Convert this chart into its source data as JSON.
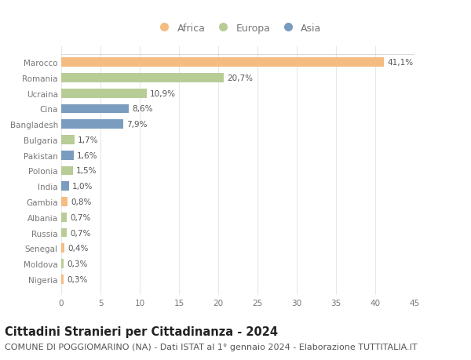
{
  "countries": [
    "Marocco",
    "Romania",
    "Ucraina",
    "Cina",
    "Bangladesh",
    "Bulgaria",
    "Pakistan",
    "Polonia",
    "India",
    "Gambia",
    "Albania",
    "Russia",
    "Senegal",
    "Moldova",
    "Nigeria"
  ],
  "values": [
    41.1,
    20.7,
    10.9,
    8.6,
    7.9,
    1.7,
    1.6,
    1.5,
    1.0,
    0.8,
    0.7,
    0.7,
    0.4,
    0.3,
    0.3
  ],
  "labels": [
    "41,1%",
    "20,7%",
    "10,9%",
    "8,6%",
    "7,9%",
    "1,7%",
    "1,6%",
    "1,5%",
    "1,0%",
    "0,8%",
    "0,7%",
    "0,7%",
    "0,4%",
    "0,3%",
    "0,3%"
  ],
  "continent": [
    "Africa",
    "Europa",
    "Europa",
    "Asia",
    "Asia",
    "Europa",
    "Asia",
    "Europa",
    "Asia",
    "Africa",
    "Europa",
    "Europa",
    "Africa",
    "Europa",
    "Africa"
  ],
  "colors": {
    "Africa": "#F5BC82",
    "Europa": "#B8CC96",
    "Asia": "#7A9CBF"
  },
  "title": "Cittadini Stranieri per Cittadinanza - 2024",
  "subtitle": "COMUNE DI POGGIOMARINO (NA) - Dati ISTAT al 1° gennaio 2024 - Elaborazione TUTTITALIA.IT",
  "xlim": [
    0,
    45
  ],
  "xticks": [
    0,
    5,
    10,
    15,
    20,
    25,
    30,
    35,
    40,
    45
  ],
  "background_color": "#ffffff",
  "plot_bg_color": "#ffffff",
  "grid_color": "#e8e8e8",
  "bar_height": 0.6,
  "title_fontsize": 10.5,
  "subtitle_fontsize": 8,
  "label_fontsize": 7.5,
  "tick_fontsize": 7.5,
  "legend_fontsize": 9,
  "label_color": "#555555",
  "tick_color": "#777777"
}
